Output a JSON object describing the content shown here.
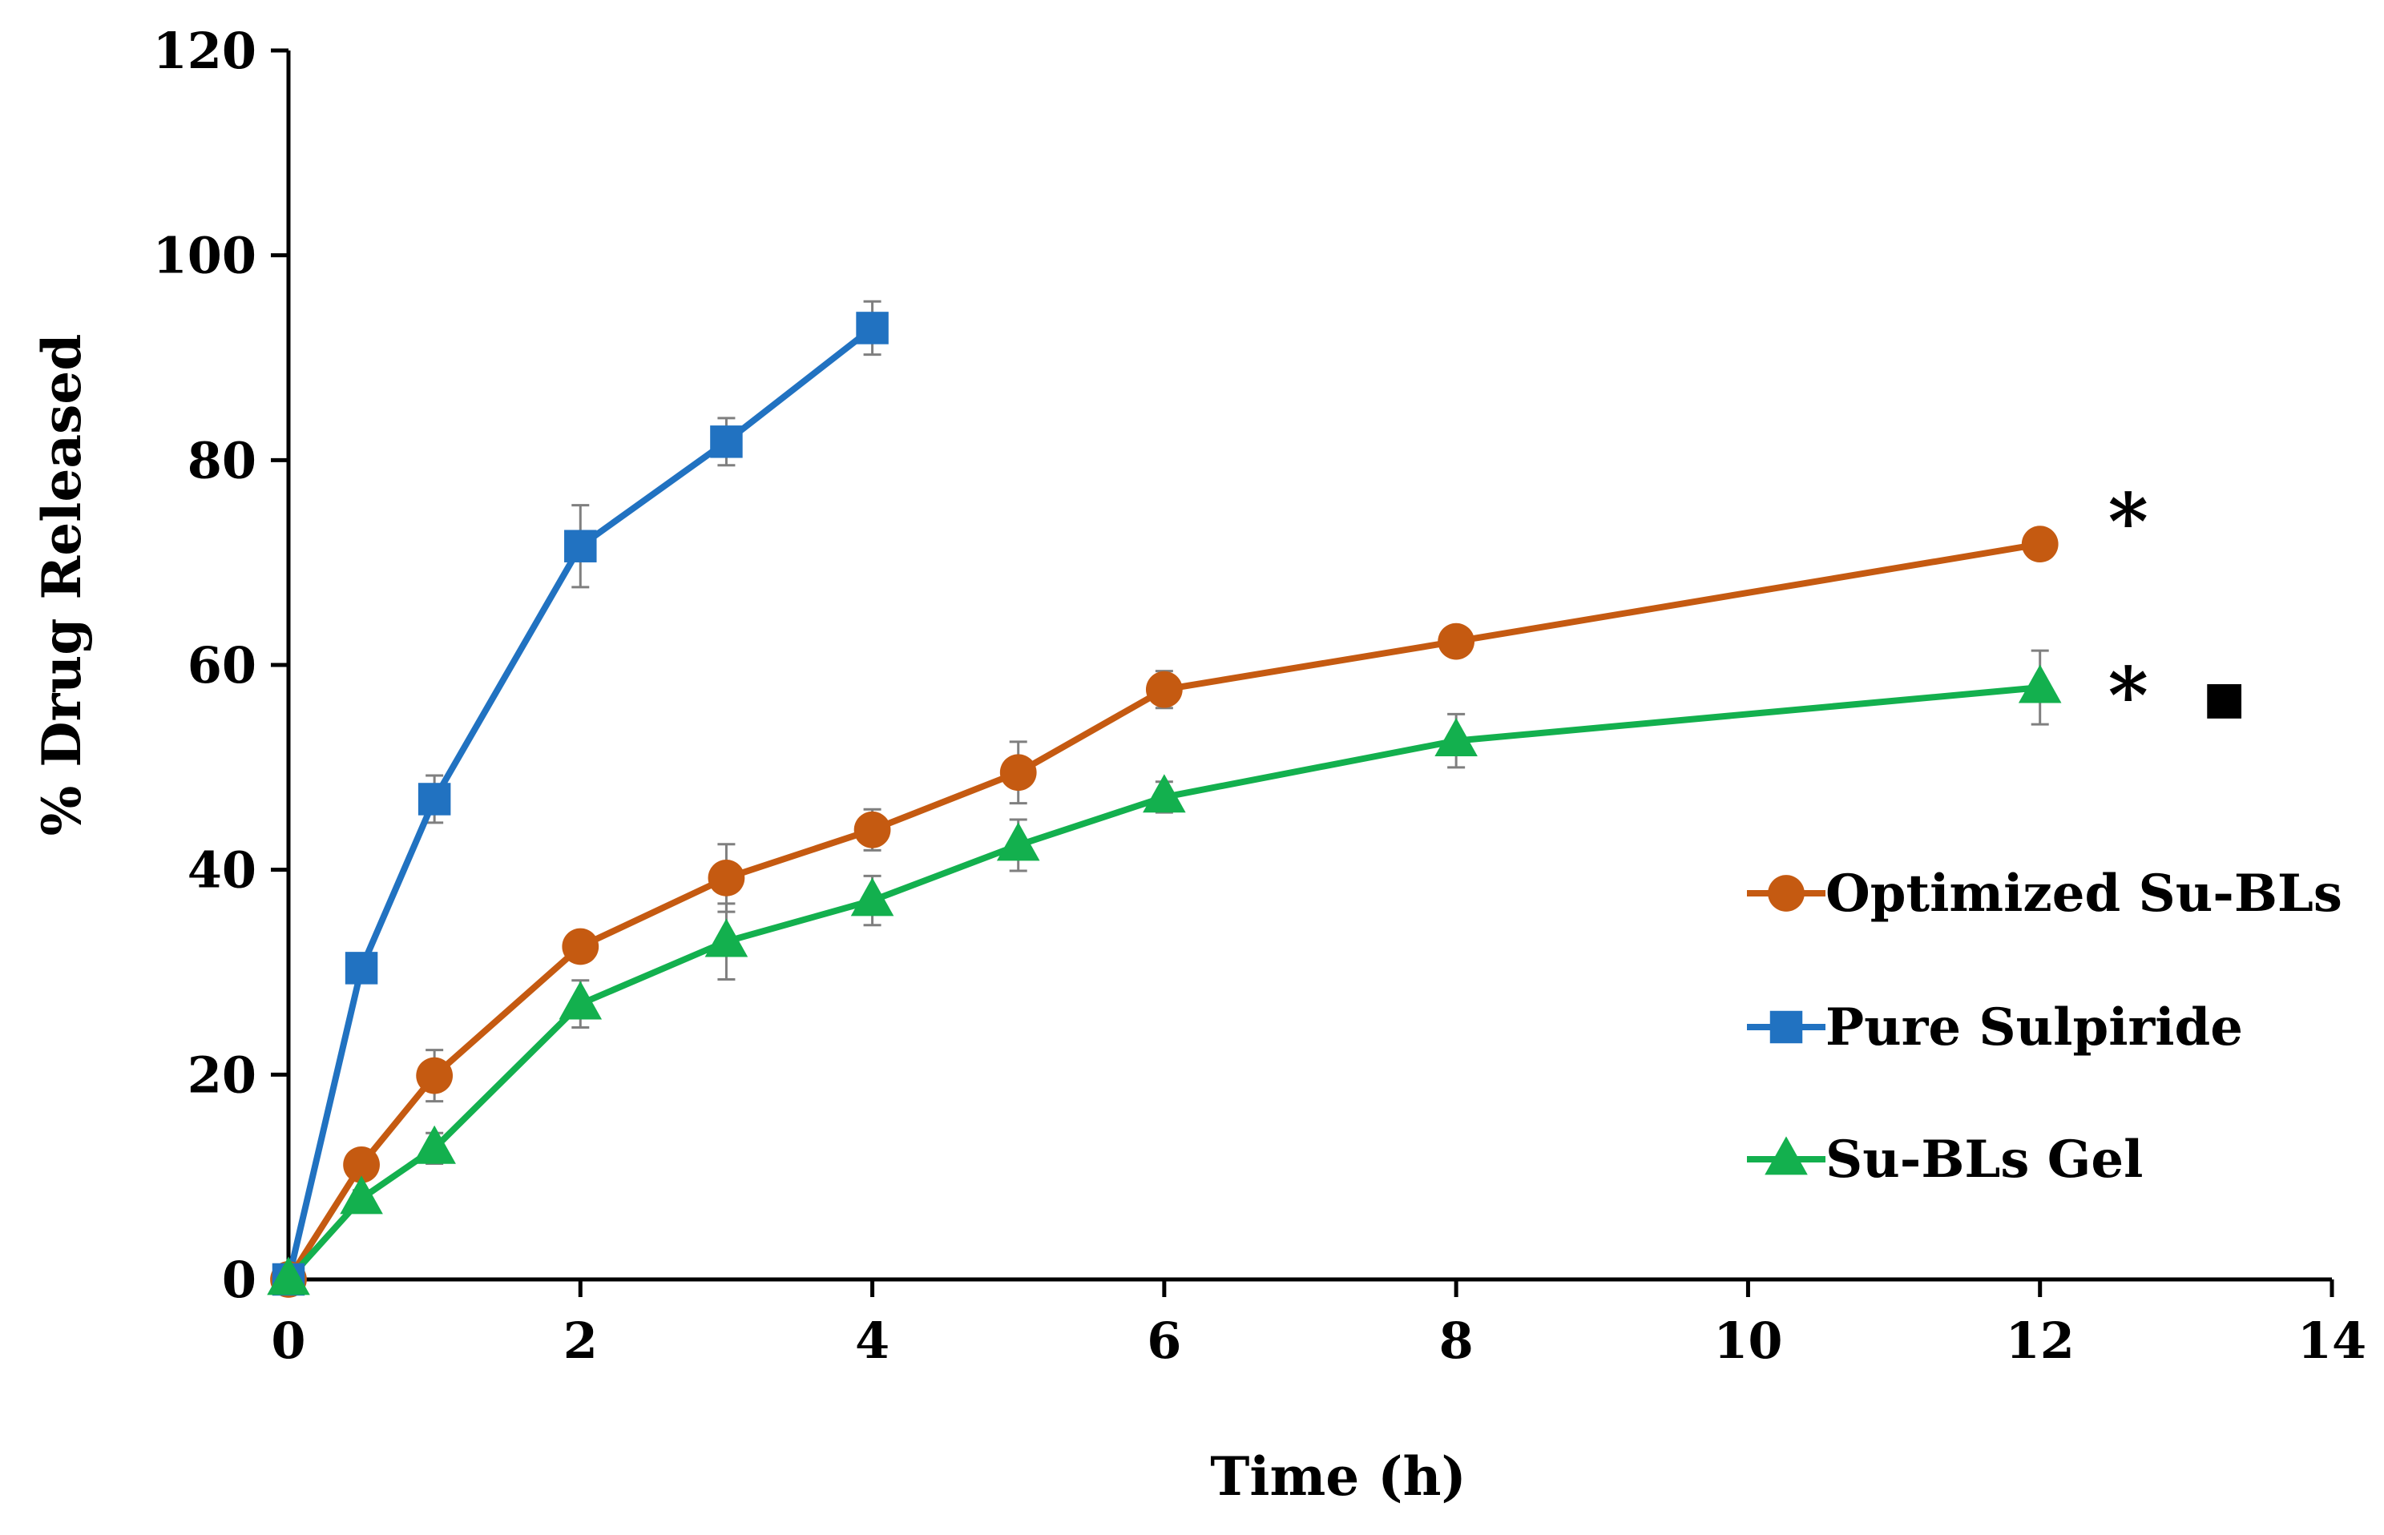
{
  "chart_data": {
    "type": "line",
    "title": "",
    "xlabel": "Time (h)",
    "ylabel": "% Drug Released",
    "xlim": [
      0,
      14
    ],
    "ylim": [
      0,
      120
    ],
    "x_ticks": [
      0,
      2,
      4,
      6,
      8,
      10,
      12,
      14
    ],
    "y_ticks": [
      0,
      20,
      40,
      60,
      80,
      100,
      120
    ],
    "grid": false,
    "legend_position": "right",
    "series": [
      {
        "name": "Optimized Su-BLs",
        "color": "#c55a11",
        "marker": "circle",
        "x": [
          0,
          0.5,
          1,
          2,
          3,
          4,
          5,
          6,
          8,
          12
        ],
        "y": [
          0,
          11.2,
          19.9,
          32.5,
          39.2,
          43.9,
          49.5,
          57.6,
          62.3,
          71.8
        ],
        "err": [
          0,
          0.8,
          2.5,
          1.3,
          3.3,
          2.0,
          3.0,
          1.8,
          1.2,
          1.2
        ]
      },
      {
        "name": "Pure Sulpiride",
        "color": "#2172c1",
        "marker": "square",
        "x": [
          0,
          0.5,
          1,
          2,
          3,
          4
        ],
        "y": [
          0,
          30.4,
          46.9,
          71.6,
          81.8,
          92.9
        ],
        "err": [
          0,
          0.8,
          2.3,
          4.0,
          2.3,
          2.6
        ]
      },
      {
        "name": "Su-BLs Gel",
        "color": "#13b04e",
        "marker": "triangle",
        "x": [
          0,
          0.5,
          1,
          2,
          3,
          4,
          5,
          6,
          8,
          12
        ],
        "y": [
          0,
          7.9,
          12.8,
          26.9,
          33.0,
          37.0,
          42.4,
          47.1,
          52.6,
          57.8
        ],
        "err": [
          0,
          0.8,
          1.5,
          2.3,
          3.7,
          2.4,
          2.5,
          1.5,
          2.6,
          3.6
        ]
      }
    ],
    "annotations": [
      {
        "text": "*",
        "series": "Optimized Su-BLs"
      },
      {
        "text": "*",
        "series": "Su-BLs Gel"
      },
      {
        "text": "■",
        "series": "Su-BLs Gel"
      }
    ]
  }
}
